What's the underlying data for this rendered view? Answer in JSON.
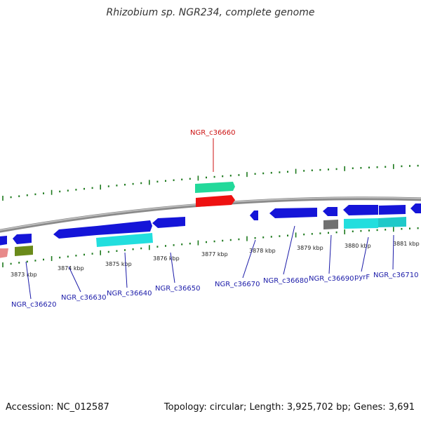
{
  "title": "Rhizobium sp. NGR234, complete genome",
  "footer": {
    "accession": "Accession: NC_012587",
    "summary": "Topology: circular; Length: 3,925,702 bp; Genes: 3,691"
  },
  "colors": {
    "backbone": "#8a8a8a",
    "tick": "#1e7a1e",
    "label_default": "#1a1aa8",
    "label_highlight": "#cc1111",
    "blue_gene": "#1515d8",
    "cyan_gene": "#22dede",
    "teal_gene": "#1fc9c9",
    "green_gene": "#22d99a",
    "red_gene": "#ee1111",
    "olive_gene": "#6a8a1a",
    "pink_gene": "#e88a8a",
    "grey_gene": "#707070"
  },
  "kbp_labels": [
    "3873 kbp",
    "3874 kbp",
    "3875 kbp",
    "3876 kbp",
    "3877 kbp",
    "3878 kbp",
    "3879 kbp",
    "3880 kbp",
    "3881 kbp"
  ],
  "gene_labels": [
    {
      "text": "NGR_c36620",
      "highlight": false
    },
    {
      "text": "NGR_c36630",
      "highlight": false
    },
    {
      "text": "NGR_c36640",
      "highlight": false
    },
    {
      "text": "NGR_c36650",
      "highlight": false
    },
    {
      "text": "NGR_c36660",
      "highlight": true
    },
    {
      "text": "NGR_c36670",
      "highlight": false
    },
    {
      "text": "NGR_c36680",
      "highlight": false
    },
    {
      "text": "NGR_c36690",
      "highlight": false
    },
    {
      "text": "pyrF",
      "highlight": false
    },
    {
      "text": "NGR_c36710",
      "highlight": false
    }
  ]
}
